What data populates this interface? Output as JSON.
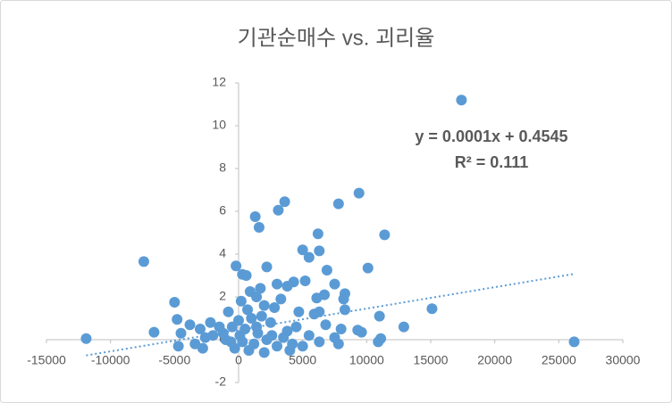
{
  "chart_data": {
    "type": "scatter",
    "title": "기관순매수 vs. 괴리율",
    "color": "#5b9bd5",
    "xlim": [
      -15000,
      30000
    ],
    "xticks": [
      -15000,
      -10000,
      -5000,
      0,
      5000,
      10000,
      15000,
      20000,
      25000,
      30000
    ],
    "ylim": [
      -2,
      12
    ],
    "yticks": [
      -2,
      0,
      2,
      4,
      6,
      8,
      10,
      12
    ],
    "trendline": {
      "label": "y = 0.0001x + 0.4545",
      "r2_label": "R² = 0.111",
      "slope": 0.0001,
      "intercept": 0.4545,
      "color": "#5b9bd5"
    },
    "x": [
      -11900,
      -7400,
      -6600,
      -5000,
      -4800,
      -4500,
      -4700,
      -3000,
      17400,
      9400,
      7800,
      3600,
      3100,
      1300,
      1600,
      6200,
      11400,
      5000,
      6300,
      5500,
      10100,
      6900,
      -200,
      2200,
      300,
      600,
      15100,
      12900,
      11000,
      26200,
      10900,
      11100,
      9300,
      9600,
      8300,
      8200,
      8300,
      7500,
      6700,
      6100,
      5900,
      6300,
      4700,
      5200,
      4300,
      3800,
      3000,
      1700,
      1400,
      900,
      200,
      -800,
      -1500,
      -2000,
      -2600,
      -3400,
      7800,
      6300,
      5000,
      4000,
      2000,
      800,
      -300,
      500,
      1000,
      1500,
      2500,
      3500,
      4500,
      -1000,
      0,
      2800,
      3300,
      -500,
      1200,
      2200,
      3800,
      6800,
      7500,
      -3800,
      -2200,
      -1200,
      300,
      700,
      1800,
      2600,
      4200,
      5500,
      8000,
      -2800,
      100,
      1400,
      3000,
      -600,
      2000
    ],
    "values": [
      0.05,
      3.65,
      0.35,
      1.75,
      0.95,
      0.3,
      -0.3,
      0.5,
      11.2,
      6.85,
      6.35,
      6.45,
      6.05,
      5.75,
      5.25,
      4.95,
      4.9,
      4.2,
      4.15,
      3.85,
      3.35,
      3.25,
      3.45,
      3.4,
      3.05,
      3.0,
      1.45,
      0.6,
      1.1,
      -0.1,
      -0.1,
      0.05,
      0.45,
      0.35,
      2.15,
      1.9,
      1.4,
      2.6,
      2.1,
      1.95,
      1.2,
      1.3,
      1.3,
      2.75,
      2.7,
      2.5,
      2.6,
      2.4,
      2.0,
      2.25,
      1.8,
      1.3,
      0.6,
      0.2,
      0.1,
      -0.2,
      -0.2,
      -0.1,
      -0.3,
      -0.5,
      -0.6,
      -0.5,
      -0.4,
      0.5,
      1.0,
      0.3,
      0.8,
      0.1,
      0.6,
      0.0,
      0.9,
      1.5,
      1.9,
      0.6,
      -0.2,
      0.0,
      0.4,
      0.7,
      0.1,
      0.7,
      0.8,
      0.3,
      -0.1,
      1.4,
      1.1,
      0.2,
      -0.2,
      0.2,
      0.5,
      -0.4,
      0.2,
      0.6,
      -0.3,
      -0.1,
      1.6
    ]
  }
}
